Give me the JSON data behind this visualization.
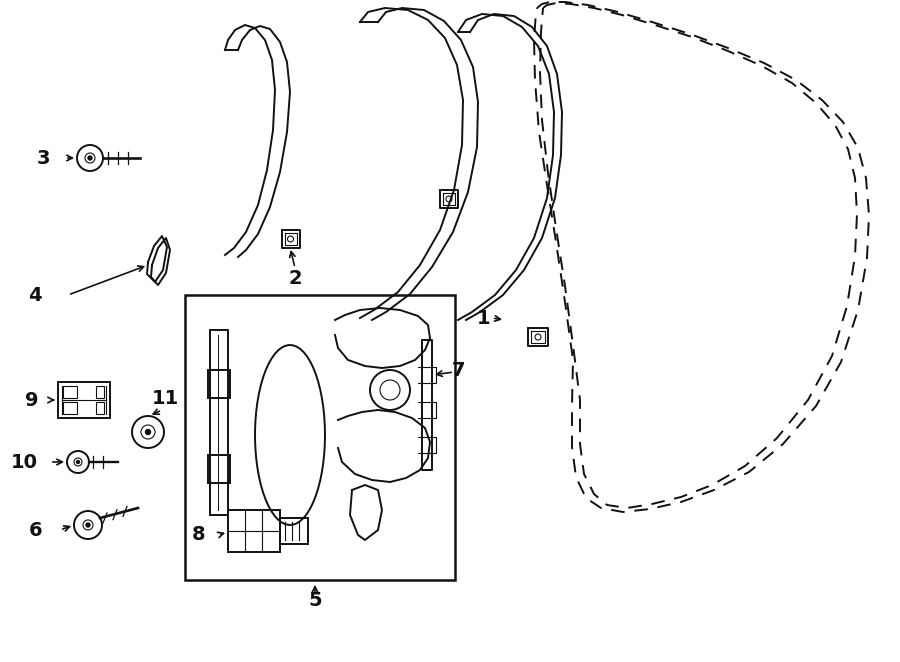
{
  "bg_color": "#ffffff",
  "line_color": "#1a1a1a",
  "figsize": [
    9.0,
    6.62
  ],
  "dpi": 100
}
